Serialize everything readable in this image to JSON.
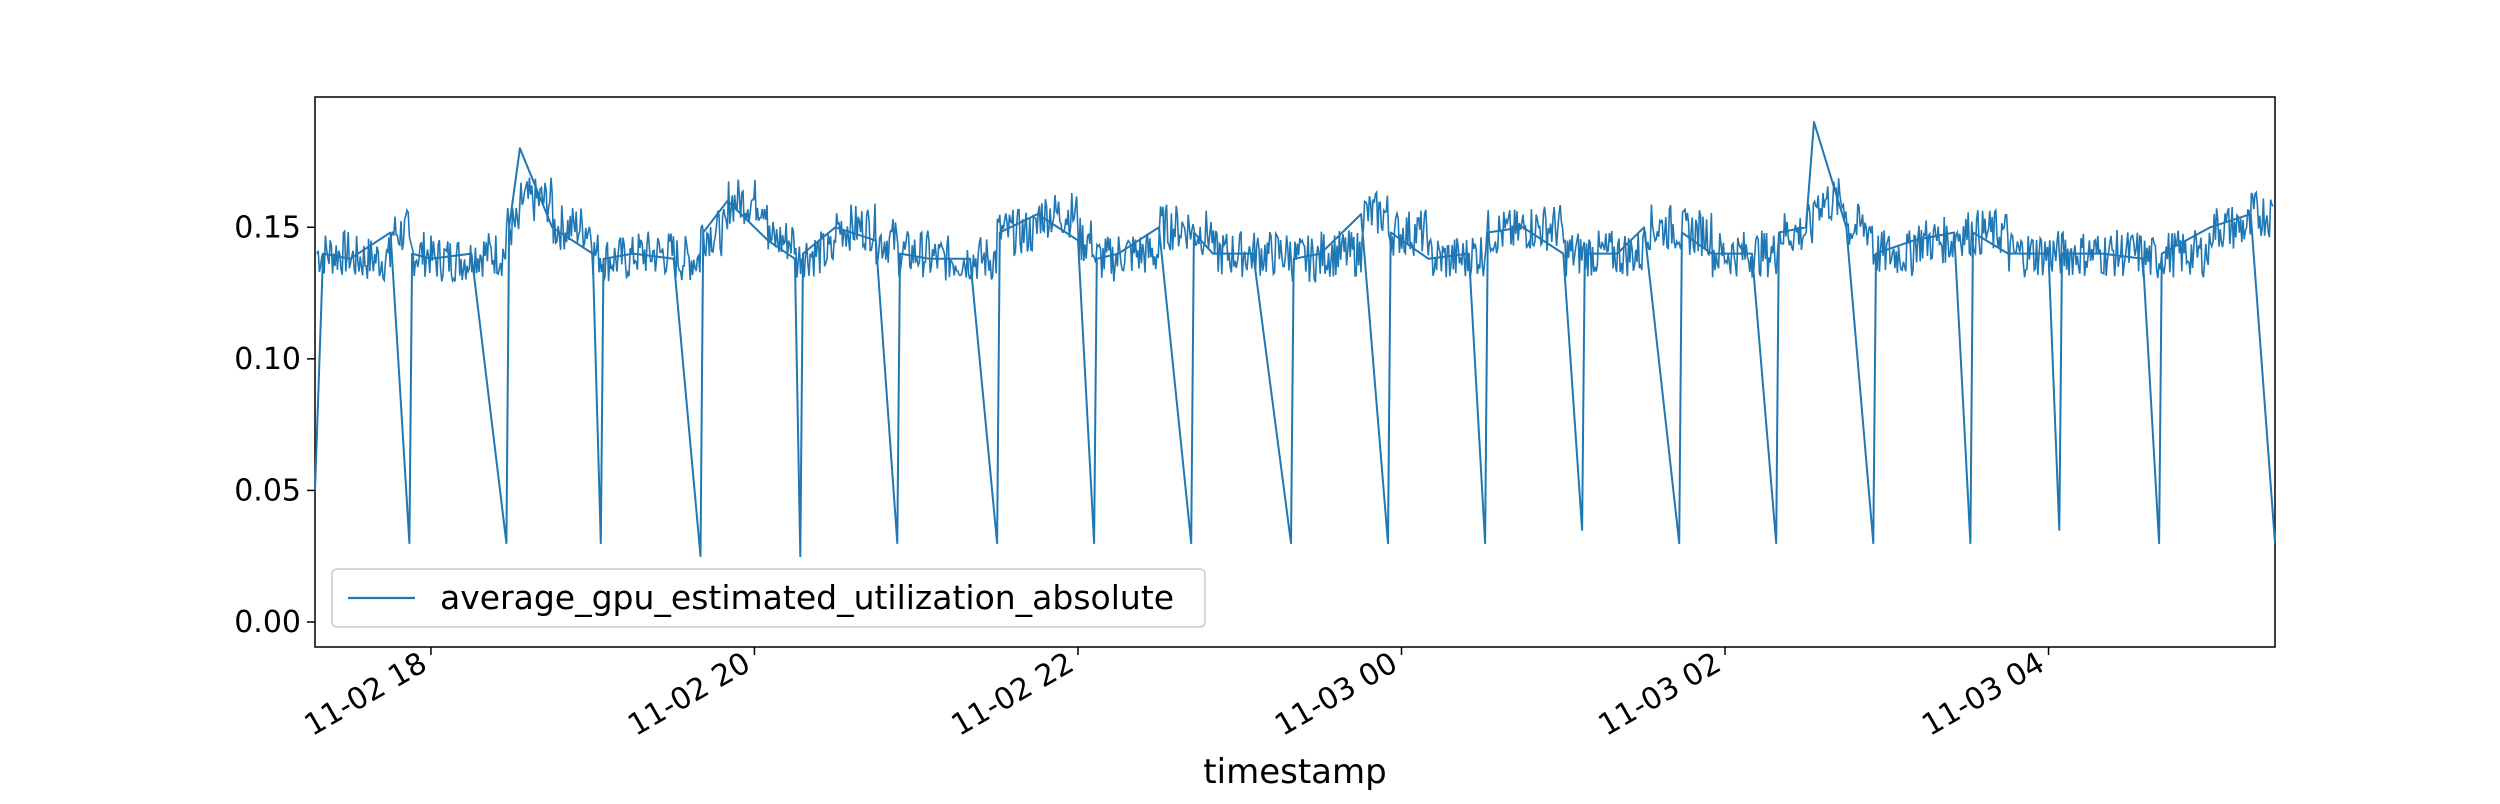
{
  "chart_data": {
    "type": "line",
    "xlabel": "timestamp",
    "ylabel": "",
    "title": "",
    "x_range": [
      "11-02 17:17",
      "11-03 05:24"
    ],
    "ylim": [
      -0.0095,
      0.1995
    ],
    "x_ticks": [
      {
        "value": "11-02 18:00",
        "label": "11-02 18"
      },
      {
        "value": "11-02 20:00",
        "label": "11-02 20"
      },
      {
        "value": "11-02 22:00",
        "label": "11-02 22"
      },
      {
        "value": "11-03 00:00",
        "label": "11-03 00"
      },
      {
        "value": "11-03 02:00",
        "label": "11-03 02"
      },
      {
        "value": "11-03 04:00",
        "label": "11-03 04"
      }
    ],
    "y_ticks": [
      {
        "value": 0.0,
        "label": "0.00"
      },
      {
        "value": 0.05,
        "label": "0.05"
      },
      {
        "value": 0.1,
        "label": "0.10"
      },
      {
        "value": 0.15,
        "label": "0.15"
      }
    ],
    "grid": false,
    "legend": {
      "placement": "lower-left"
    },
    "series": [
      {
        "name": "average_gpu_estimated_utilization_absolute",
        "color": "#1f77b4",
        "x": [
          "11-02 17:17",
          "11-02 17:20",
          "11-02 17:30",
          "11-02 17:45",
          "11-02 17:52",
          "11-02 17:53",
          "11-02 18:00",
          "11-02 18:15",
          "11-02 18:28",
          "11-02 18:29",
          "11-02 18:33",
          "11-02 18:45",
          "11-02 19:00",
          "11-02 19:03",
          "11-02 19:04",
          "11-02 19:15",
          "11-02 19:30",
          "11-02 19:40",
          "11-02 19:41",
          "11-02 19:50",
          "11-02 20:05",
          "11-02 20:15",
          "11-02 20:17",
          "11-02 20:18",
          "11-02 20:30",
          "11-02 20:45",
          "11-02 20:53",
          "11-02 20:54",
          "11-02 21:05",
          "11-02 21:20",
          "11-02 21:30",
          "11-02 21:31",
          "11-02 21:45",
          "11-02 22:00",
          "11-02 22:06",
          "11-02 22:07",
          "11-02 22:15",
          "11-02 22:30",
          "11-02 22:42",
          "11-02 22:43",
          "11-02 22:50",
          "11-02 23:05",
          "11-02 23:19",
          "11-02 23:20",
          "11-02 23:30",
          "11-02 23:45",
          "11-02 23:55",
          "11-02 23:56",
          "11-03 00:10",
          "11-03 00:25",
          "11-03 00:31",
          "11-03 00:32",
          "11-03 00:45",
          "11-03 01:00",
          "11-03 01:07",
          "11-03 01:08",
          "11-03 01:20",
          "11-03 01:30",
          "11-03 01:43",
          "11-03 01:44",
          "11-03 01:55",
          "11-03 02:10",
          "11-03 02:19",
          "11-03 02:20",
          "11-03 02:30",
          "11-03 02:33",
          "11-03 02:45",
          "11-03 02:55",
          "11-03 02:56",
          "11-03 03:10",
          "11-03 03:25",
          "11-03 03:31",
          "11-03 03:32",
          "11-03 03:45",
          "11-03 04:00",
          "11-03 04:04",
          "11-03 04:05",
          "11-03 04:20",
          "11-03 04:35",
          "11-03 04:41",
          "11-03 04:42",
          "11-03 05:00",
          "11-03 05:15",
          "11-03 05:24"
        ],
        "values": [
          0.05,
          0.14,
          0.138,
          0.148,
          0.03,
          0.14,
          0.138,
          0.14,
          0.03,
          0.15,
          0.18,
          0.15,
          0.14,
          0.03,
          0.138,
          0.14,
          0.138,
          0.025,
          0.148,
          0.16,
          0.145,
          0.138,
          0.025,
          0.14,
          0.15,
          0.145,
          0.03,
          0.14,
          0.138,
          0.138,
          0.03,
          0.148,
          0.155,
          0.145,
          0.03,
          0.138,
          0.14,
          0.15,
          0.03,
          0.148,
          0.14,
          0.14,
          0.03,
          0.138,
          0.14,
          0.155,
          0.03,
          0.148,
          0.138,
          0.14,
          0.03,
          0.148,
          0.15,
          0.14,
          0.035,
          0.14,
          0.14,
          0.15,
          0.03,
          0.148,
          0.14,
          0.14,
          0.03,
          0.148,
          0.15,
          0.19,
          0.15,
          0.03,
          0.14,
          0.145,
          0.148,
          0.03,
          0.148,
          0.14,
          0.14,
          0.035,
          0.14,
          0.14,
          0.138,
          0.03,
          0.14,
          0.15,
          0.155,
          0.03
        ]
      }
    ]
  }
}
